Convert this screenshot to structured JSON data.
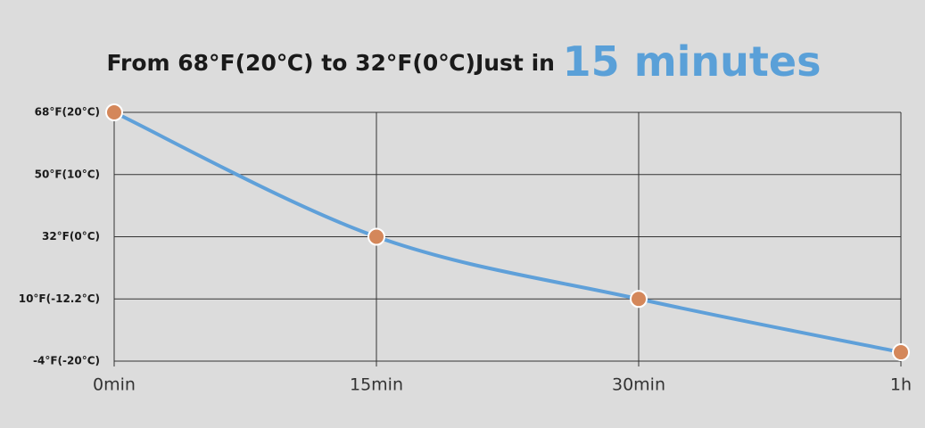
{
  "chart_data": {
    "type": "line",
    "title": "From 68°F(20℃) to 32°F(0℃)Just in ",
    "title_highlight": "15 minutes",
    "categories": [
      "0min",
      "15min",
      "30min",
      "1h"
    ],
    "series": [
      {
        "color": "#5fa0d9",
        "values": [
          68,
          32,
          10,
          -2
        ]
      }
    ],
    "marker_color": "#d4875a",
    "ylim": [
      -4,
      68
    ],
    "yticks": [
      {
        "value": -4,
        "label": "-4°F(-20°C)"
      },
      {
        "value": 10,
        "label": "10°F(-12.2°C)"
      },
      {
        "value": 32,
        "label": "32°F(0°C)"
      },
      {
        "value": 50,
        "label": "50°F(10°C)"
      },
      {
        "value": 68,
        "label": "68°F(20°C)"
      }
    ],
    "grid": true
  }
}
